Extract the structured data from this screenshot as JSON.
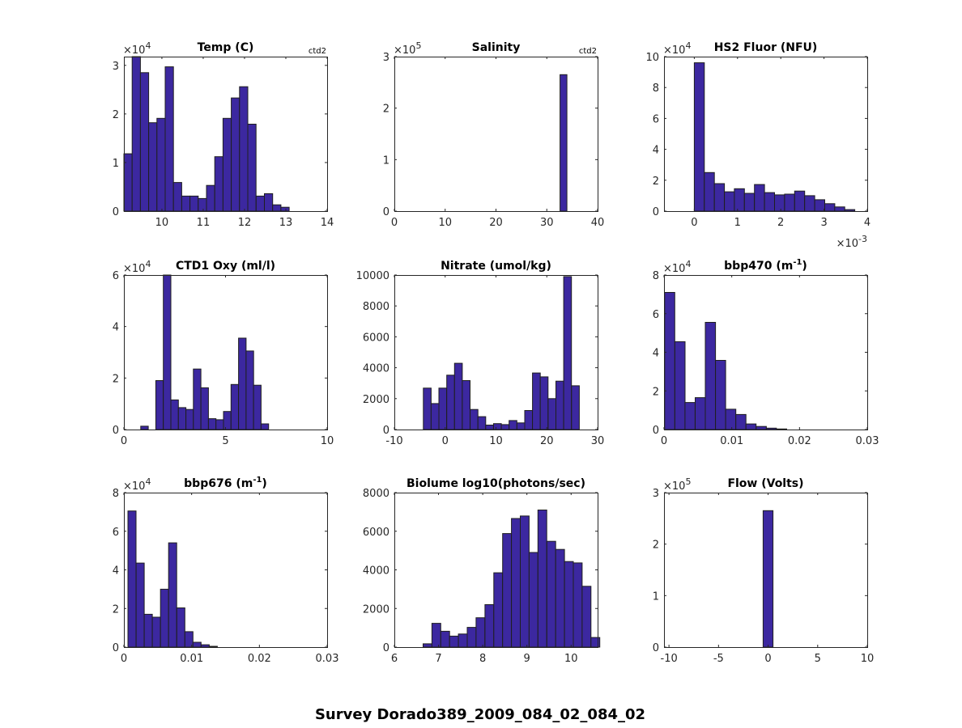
{
  "figure": {
    "suptitle": "Survey Dorado389_2009_084_02_084_02",
    "bar_color": "#3c28a0",
    "edge_color": "#1f1f1f"
  },
  "chart_data": [
    {
      "type": "bar",
      "title": "Temp (C)",
      "note": "ctd2",
      "xlim": [
        9.08,
        14
      ],
      "ylim": [
        0,
        31800
      ],
      "y_exponent": "4",
      "x_exponent": null,
      "xticks": [
        10,
        11,
        12,
        13,
        14
      ],
      "xtick_labels": [
        "10",
        "11",
        "12",
        "13",
        "14"
      ],
      "yticks": [
        0,
        10000,
        20000,
        30000
      ],
      "ytick_labels": [
        "0",
        "1",
        "2",
        "3"
      ],
      "bin_start": 9.08,
      "bin_width": 0.2,
      "values": [
        11800,
        31800,
        28500,
        18200,
        19100,
        29700,
        5900,
        3100,
        3100,
        2600,
        5300,
        11200,
        19100,
        23300,
        25600,
        17900,
        3100,
        3600,
        1300,
        800
      ]
    },
    {
      "type": "bar",
      "title": "Salinity",
      "note": "ctd2",
      "xlim": [
        0,
        40
      ],
      "ylim": [
        0,
        300000
      ],
      "y_exponent": "5",
      "x_exponent": null,
      "xticks": [
        0,
        10,
        20,
        30,
        40
      ],
      "xtick_labels": [
        "0",
        "10",
        "20",
        "30",
        "40"
      ],
      "yticks": [
        0,
        100000,
        200000,
        300000
      ],
      "ytick_labels": [
        "0",
        "1",
        "2",
        "3"
      ],
      "bin_start": 32.6,
      "bin_width": 1.35,
      "values": [
        265000
      ]
    },
    {
      "type": "bar",
      "title": "HS2 Fluor (NFU)",
      "note": null,
      "xlim": [
        -0.0007,
        0.004
      ],
      "ylim": [
        0,
        100000
      ],
      "y_exponent": "4",
      "x_exponent": "-3",
      "xticks": [
        0,
        0.001,
        0.002,
        0.003,
        0.004
      ],
      "xtick_labels": [
        "0",
        "1",
        "2",
        "3",
        "4"
      ],
      "yticks": [
        0,
        20000,
        40000,
        60000,
        80000,
        100000
      ],
      "ytick_labels": [
        "0",
        "2",
        "4",
        "6",
        "8",
        "10"
      ],
      "bin_start": 0.0,
      "bin_width": 0.000232,
      "values": [
        96000,
        25000,
        17800,
        12500,
        14500,
        11500,
        17200,
        12000,
        10500,
        11000,
        13000,
        10000,
        7400,
        4800,
        2700,
        1000
      ]
    },
    {
      "type": "bar",
      "title": "CTD1 Oxy (ml/l)",
      "note": null,
      "xlim": [
        0,
        10
      ],
      "ylim": [
        0,
        60000
      ],
      "y_exponent": "4",
      "x_exponent": null,
      "xticks": [
        0,
        5,
        10
      ],
      "xtick_labels": [
        "0",
        "5",
        "10"
      ],
      "yticks": [
        0,
        20000,
        40000,
        60000
      ],
      "ytick_labels": [
        "0",
        "2",
        "4",
        "6"
      ],
      "bin_start": 0.83,
      "bin_width": 0.37,
      "values": [
        1300,
        0,
        19000,
        60000,
        11500,
        8500,
        7800,
        23500,
        16200,
        4200,
        3800,
        7000,
        17500,
        35500,
        30500,
        17200,
        2200
      ]
    },
    {
      "type": "bar",
      "title": "Nitrate (umol/kg)",
      "note": null,
      "xlim": [
        -10,
        30
      ],
      "ylim": [
        0,
        10000
      ],
      "y_exponent": null,
      "x_exponent": null,
      "xticks": [
        -10,
        0,
        10,
        20,
        30
      ],
      "xtick_labels": [
        "-10",
        "0",
        "10",
        "20",
        "30"
      ],
      "yticks": [
        0,
        2000,
        4000,
        6000,
        8000,
        10000
      ],
      "ytick_labels": [
        "0",
        "2000",
        "4000",
        "6000",
        "8000",
        "10000"
      ],
      "bin_start": -4.3,
      "bin_width": 1.535,
      "values": [
        2680,
        1680,
        2680,
        3520,
        4290,
        3170,
        1300,
        830,
        290,
        380,
        320,
        580,
        430,
        1230,
        3660,
        3410,
        2000,
        3130,
        9900,
        2830
      ]
    },
    {
      "type": "bar",
      "title": "bbp470 (m",
      "title_sup": "-1",
      "title_suffix": ")",
      "note": null,
      "xlim": [
        0,
        0.03
      ],
      "ylim": [
        0,
        80000
      ],
      "y_exponent": "4",
      "x_exponent": null,
      "xticks": [
        0,
        0.01,
        0.02,
        0.03
      ],
      "xtick_labels": [
        "0",
        "0.01",
        "0.02",
        "0.03"
      ],
      "yticks": [
        0,
        20000,
        40000,
        60000,
        80000
      ],
      "ytick_labels": [
        "0",
        "2",
        "4",
        "6",
        "8"
      ],
      "bin_start": 0.0001,
      "bin_width": 0.0015,
      "values": [
        71000,
        45500,
        14000,
        16500,
        55500,
        35800,
        10500,
        7800,
        2900,
        1600,
        700,
        300
      ]
    },
    {
      "type": "bar",
      "title": "bbp676 (m",
      "title_sup": "-1",
      "title_suffix": ")",
      "note": null,
      "xlim": [
        0,
        0.03
      ],
      "ylim": [
        0,
        80000
      ],
      "y_exponent": "4",
      "x_exponent": null,
      "xticks": [
        0,
        0.01,
        0.02,
        0.03
      ],
      "xtick_labels": [
        "0",
        "0.01",
        "0.02",
        "0.03"
      ],
      "yticks": [
        0,
        20000,
        40000,
        60000,
        80000
      ],
      "ytick_labels": [
        "0",
        "2",
        "4",
        "6",
        "8"
      ],
      "bin_start": 0.0006,
      "bin_width": 0.0012,
      "values": [
        70500,
        43500,
        17000,
        15500,
        30000,
        54000,
        20300,
        8000,
        2500,
        1200,
        400
      ]
    },
    {
      "type": "bar",
      "title": "Biolume log10(photons/sec)",
      "note": null,
      "xlim": [
        6,
        10.6
      ],
      "ylim": [
        0,
        8000
      ],
      "y_exponent": null,
      "x_exponent": null,
      "xticks": [
        6,
        7,
        8,
        9,
        10
      ],
      "xtick_labels": [
        "6",
        "7",
        "8",
        "9",
        "10"
      ],
      "yticks": [
        0,
        2000,
        4000,
        6000,
        8000
      ],
      "ytick_labels": [
        "0",
        "2000",
        "4000",
        "6000",
        "8000"
      ],
      "bin_start": 6.65,
      "bin_width": 0.2,
      "values": [
        170,
        1230,
        820,
        570,
        680,
        1020,
        1520,
        2200,
        3850,
        5880,
        6660,
        6790,
        4900,
        7100,
        5480,
        5060,
        4430,
        4360,
        3150,
        500
      ]
    },
    {
      "type": "bar",
      "title": "Flow (Volts)",
      "note": null,
      "xlim": [
        -10.5,
        10
      ],
      "ylim": [
        0,
        300000
      ],
      "y_exponent": "5",
      "x_exponent": null,
      "xticks": [
        -10,
        -5,
        0,
        5,
        10
      ],
      "xtick_labels": [
        "-10",
        "-5",
        "0",
        "5",
        "10"
      ],
      "yticks": [
        0,
        100000,
        200000,
        300000
      ],
      "ytick_labels": [
        "0",
        "1",
        "2",
        "3"
      ],
      "bin_start": -0.5,
      "bin_width": 1.0,
      "values": [
        265000
      ]
    }
  ]
}
